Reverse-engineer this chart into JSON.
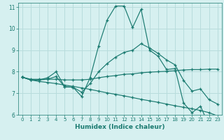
{
  "xlabel": "Humidex (Indice chaleur)",
  "xlim": [
    -0.5,
    23.5
  ],
  "ylim": [
    6,
    11.2
  ],
  "yticks": [
    6,
    7,
    8,
    9,
    10,
    11
  ],
  "xticks": [
    0,
    1,
    2,
    3,
    4,
    5,
    6,
    7,
    8,
    9,
    10,
    11,
    12,
    13,
    14,
    15,
    16,
    17,
    18,
    19,
    20,
    21,
    22,
    23
  ],
  "bg_color": "#d6f0f0",
  "grid_color": "#b8dcdc",
  "line_color": "#1a7a70",
  "lines": [
    {
      "x": [
        0,
        1,
        2,
        3,
        4,
        5,
        6,
        7,
        8,
        9,
        10,
        11,
        12,
        13,
        14,
        15,
        16,
        17,
        18,
        19,
        20,
        21,
        22,
        23
      ],
      "y": [
        7.75,
        7.62,
        7.62,
        7.72,
        8.0,
        7.3,
        7.28,
        6.85,
        7.72,
        9.2,
        10.4,
        11.05,
        11.05,
        10.05,
        10.9,
        9.0,
        8.72,
        8.1,
        8.15,
        6.55,
        6.1,
        6.4,
        5.5,
        5.5
      ]
    },
    {
      "x": [
        0,
        1,
        2,
        3,
        4,
        5,
        6,
        7,
        8,
        9,
        10,
        11,
        12,
        13,
        14,
        15,
        16,
        17,
        18,
        19,
        20,
        21,
        22,
        23
      ],
      "y": [
        7.75,
        7.65,
        7.65,
        7.65,
        7.65,
        7.62,
        7.62,
        7.62,
        7.65,
        7.72,
        7.78,
        7.82,
        7.88,
        7.9,
        7.95,
        7.98,
        8.0,
        8.02,
        8.05,
        8.08,
        8.1,
        8.1,
        8.12,
        8.12
      ]
    },
    {
      "x": [
        0,
        1,
        2,
        3,
        4,
        5,
        6,
        7,
        8,
        9,
        10,
        11,
        12,
        13,
        14,
        15,
        16,
        17,
        18,
        19,
        20,
        21,
        22,
        23
      ],
      "y": [
        7.75,
        7.62,
        7.55,
        7.5,
        7.45,
        7.38,
        7.32,
        7.25,
        7.18,
        7.1,
        7.02,
        6.95,
        6.88,
        6.8,
        6.72,
        6.65,
        6.58,
        6.5,
        6.42,
        6.35,
        6.28,
        6.2,
        6.1,
        5.95
      ]
    },
    {
      "x": [
        0,
        1,
        2,
        3,
        4,
        5,
        6,
        7,
        8,
        9,
        10,
        11,
        12,
        13,
        14,
        15,
        16,
        17,
        18,
        19,
        20,
        21,
        22,
        23
      ],
      "y": [
        7.75,
        7.62,
        7.62,
        7.65,
        7.78,
        7.3,
        7.28,
        7.05,
        7.45,
        8.0,
        8.38,
        8.68,
        8.9,
        9.0,
        9.3,
        9.1,
        8.85,
        8.55,
        8.32,
        7.6,
        7.1,
        7.2,
        6.7,
        6.5
      ]
    }
  ]
}
